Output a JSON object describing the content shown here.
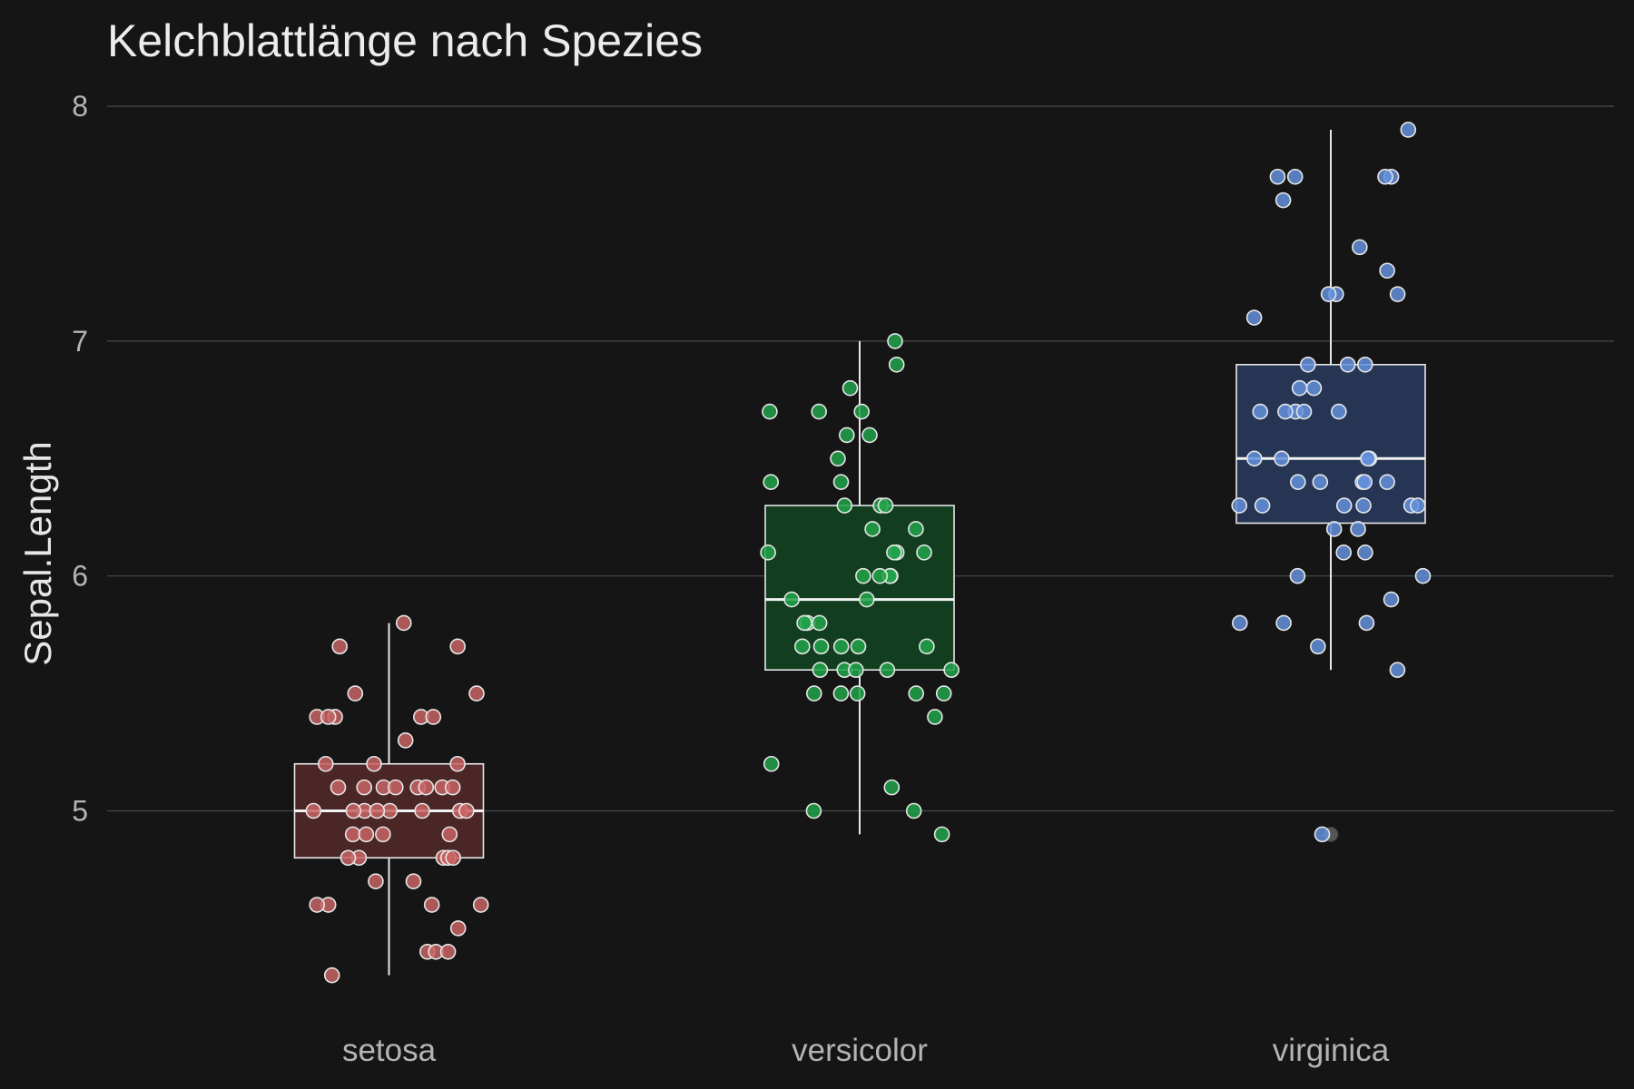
{
  "chart_data": {
    "type": "boxplot",
    "title": "Kelchblattlänge nach Spezies",
    "xlabel": "",
    "ylabel": "Sepal.Length",
    "ylim": [
      4.2,
      8.1
    ],
    "yticks": [
      "5",
      "6",
      "7",
      "8"
    ],
    "grid": true,
    "legend": "none",
    "categories": [
      "setosa",
      "versicolor",
      "virginica"
    ],
    "colors": {
      "setosa": {
        "point": "#c86464",
        "box": "#4a2626"
      },
      "versicolor": {
        "point": "#22a34a",
        "box": "#123e1f"
      },
      "virginica": {
        "point": "#6490dc",
        "box": "#263553"
      }
    },
    "boxes": [
      {
        "name": "setosa",
        "min": 4.3,
        "q1": 4.8,
        "median": 5.0,
        "q3": 5.2,
        "max": 5.8
      },
      {
        "name": "versicolor",
        "min": 4.9,
        "q1": 5.6,
        "median": 5.9,
        "q3": 6.3,
        "max": 7.0
      },
      {
        "name": "virginica",
        "min": 5.6,
        "q1": 6.225,
        "median": 6.5,
        "q3": 6.9,
        "max": 7.9,
        "outliers": [
          4.9
        ]
      }
    ],
    "points": {
      "setosa": [
        5.1,
        4.9,
        4.7,
        4.6,
        5.0,
        5.4,
        4.6,
        5.0,
        4.4,
        4.9,
        5.4,
        4.8,
        4.8,
        4.3,
        5.8,
        5.7,
        5.4,
        5.1,
        5.7,
        5.1,
        5.4,
        5.1,
        4.6,
        5.1,
        4.8,
        5.0,
        5.0,
        5.2,
        5.2,
        4.7,
        4.8,
        5.4,
        5.2,
        5.5,
        4.9,
        5.0,
        5.5,
        4.9,
        4.4,
        5.1,
        5.0,
        4.5,
        4.4,
        5.0,
        5.1,
        4.8,
        5.1,
        4.6,
        5.3,
        5.0
      ],
      "versicolor": [
        7.0,
        6.4,
        6.9,
        5.5,
        6.5,
        5.7,
        6.3,
        4.9,
        6.6,
        5.2,
        5.0,
        5.9,
        6.0,
        6.1,
        5.6,
        6.7,
        5.6,
        5.8,
        6.2,
        5.6,
        5.9,
        6.1,
        6.3,
        6.1,
        6.4,
        6.6,
        6.8,
        6.7,
        6.0,
        5.7,
        5.5,
        5.5,
        5.8,
        6.0,
        5.4,
        6.0,
        6.7,
        6.3,
        5.6,
        5.5,
        5.5,
        6.1,
        5.8,
        5.0,
        5.6,
        5.7,
        5.7,
        6.2,
        5.1,
        5.7
      ],
      "virginica": [
        6.3,
        5.8,
        7.1,
        6.3,
        6.5,
        7.6,
        4.9,
        7.3,
        6.7,
        7.2,
        6.5,
        6.4,
        6.8,
        5.7,
        5.8,
        6.4,
        6.5,
        7.7,
        7.7,
        6.0,
        6.9,
        5.6,
        7.7,
        6.3,
        6.7,
        7.2,
        6.2,
        6.1,
        6.4,
        7.2,
        7.4,
        7.9,
        6.4,
        6.3,
        6.1,
        7.7,
        6.3,
        6.4,
        6.0,
        6.9,
        6.7,
        6.9,
        5.8,
        6.8,
        6.7,
        6.7,
        6.3,
        6.5,
        6.2,
        5.9
      ]
    }
  }
}
